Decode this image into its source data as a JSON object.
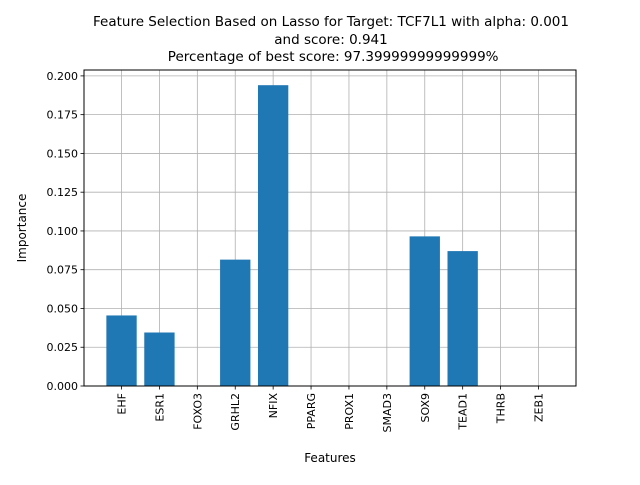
{
  "chart_data": {
    "type": "bar",
    "title_lines": [
      "Feature Selection Based on Lasso for Target: TCF7L1 with alpha: 0.001",
      "and score: 0.941",
      " Percentage of best score: 97.39999999999999%"
    ],
    "xlabel": "Features",
    "ylabel": "Importance",
    "categories": [
      "EHF",
      "ESR1",
      "FOXO3",
      "GRHL2",
      "NFIX",
      "PPARG",
      "PROX1",
      "SMAD3",
      "SOX9",
      "TEAD1",
      "THRB",
      "ZEB1"
    ],
    "values": [
      0.0455,
      0.0345,
      0.0,
      0.0815,
      0.194,
      0.0,
      0.0,
      0.0,
      0.0965,
      0.087,
      0.0,
      0.0
    ],
    "ylim": [
      0.0,
      0.2038
    ],
    "yticks": [
      0.0,
      0.025,
      0.05,
      0.075,
      0.1,
      0.125,
      0.15,
      0.175,
      0.2
    ],
    "ytick_labels": [
      "0.000",
      "0.025",
      "0.050",
      "0.075",
      "0.100",
      "0.125",
      "0.150",
      "0.175",
      "0.200"
    ],
    "grid": true,
    "bar_color": "#1f77b4",
    "grid_color": "#b0b0b0"
  }
}
